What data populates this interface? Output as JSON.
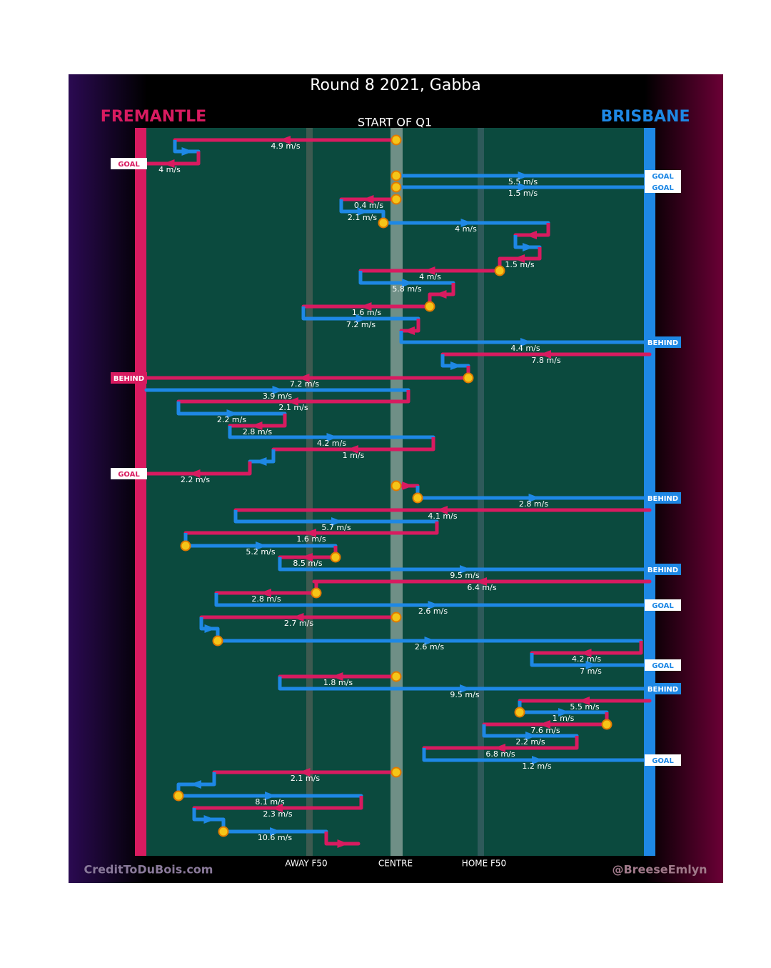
{
  "header": {
    "title": "Round 8 2021, Gabba",
    "away_team": "FREMANTLE",
    "home_team": "BRISBANE",
    "period": "START OF Q1"
  },
  "zones": [
    "AWAY F50",
    "CENTRE",
    "HOME F50"
  ],
  "footer": {
    "left": "CreditToDuBois.com",
    "right": "@BreeseEmlyn"
  },
  "possessions": [
    {
      "speeds": [
        "4.9 m/s",
        "4 m/s"
      ],
      "result": "GOAL"
    },
    {
      "speeds": [
        "5.5 m/s"
      ],
      "result": "GOAL"
    },
    {
      "speeds": [
        "1.5 m/s"
      ],
      "result": "GOAL"
    },
    {
      "speeds": [
        "0.4 m/s",
        "2.1 m/s",
        "4 m/s",
        "1.5 m/s",
        "4 m/s",
        "5.8 m/s",
        "1.6 m/s",
        "7.2 m/s",
        "4.4 m/s"
      ],
      "result": "BEHIND"
    },
    {
      "speeds": [
        "7.8 m/s",
        "7.2 m/s"
      ],
      "result": "BEHIND"
    },
    {
      "speeds": [
        "3.9 m/s",
        "2.1 m/s",
        "2.2 m/s",
        "2.8 m/s",
        "4.2 m/s",
        "1 m/s",
        "2.2 m/s"
      ],
      "result": "GOAL"
    },
    {
      "speeds": [
        "2.8 m/s"
      ],
      "result": "BEHIND"
    },
    {
      "speeds": [
        "4.1 m/s",
        "5.7 m/s",
        "1.6 m/s",
        "5.2 m/s",
        "8.5 m/s",
        "9.5 m/s"
      ],
      "result": "BEHIND"
    },
    {
      "speeds": [
        "6.4 m/s",
        "2.8 m/s",
        "2.6 m/s"
      ],
      "result": "GOAL"
    },
    {
      "speeds": [
        "2.7 m/s",
        "2.6 m/s",
        "4.2 m/s",
        "7 m/s"
      ],
      "result": "GOAL"
    },
    {
      "speeds": [
        "1.8 m/s",
        "9.5 m/s"
      ],
      "result": "BEHIND"
    },
    {
      "speeds": [
        "5.5 m/s",
        "1 m/s",
        "7.6 m/s",
        "2.2 m/s",
        "6.8 m/s",
        "1.2 m/s"
      ],
      "result": "GOAL"
    },
    {
      "speeds": [
        "2.1 m/s",
        "8.1 m/s",
        "2.3 m/s",
        "10.6 m/s"
      ]
    }
  ]
}
